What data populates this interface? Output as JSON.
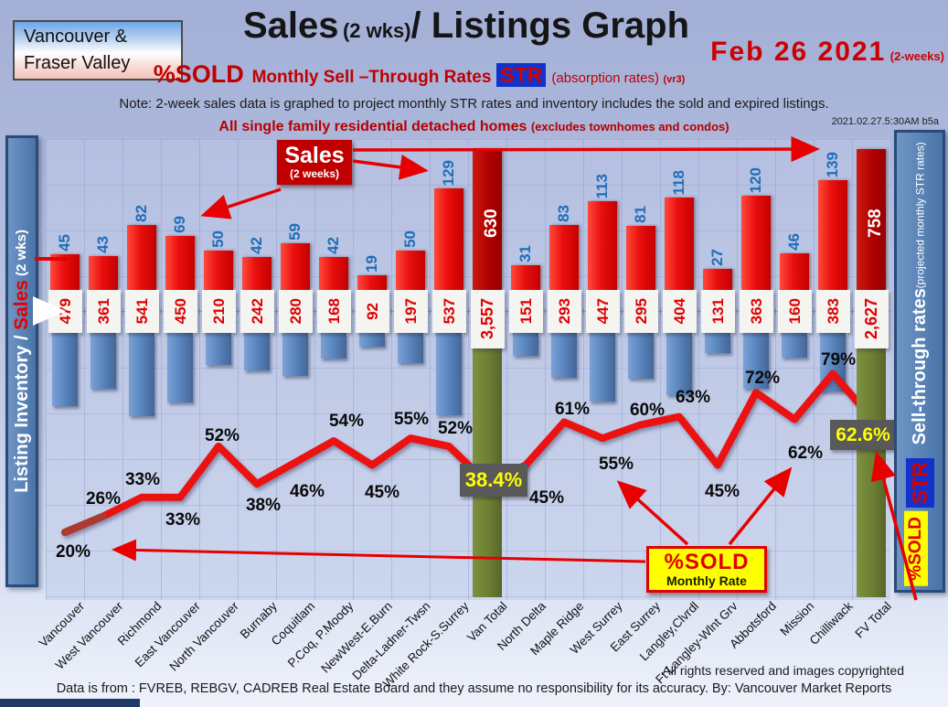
{
  "header": {
    "logo": {
      "line1": "Vancouver &",
      "line2": "Fraser Valley"
    },
    "title": {
      "main": "Sales",
      "wks": "(2 wks)",
      "rest": "/ Listings Graph"
    },
    "date": {
      "text": "Feb  26  2021",
      "suffix": "(2-weeks)"
    },
    "subtitle": {
      "pct": "%SOLD",
      "rates": "Monthly Sell –Through Rates",
      "str": "STR",
      "absorption": "(absorption rates)",
      "version": "(vr3)"
    },
    "note": "Note: 2-week sales data is graphed to project monthly STR rates and inventory includes the sold and expired listings.",
    "scope": "All single family residential detached homes",
    "scope_paren": "(excludes townhomes and condos)",
    "timestamp": "2021.02.27.5:30AM b5a"
  },
  "left_axis": {
    "part1": "Listing Inventory / ",
    "part2": "Sales",
    "part3": " (2  wks)"
  },
  "right_axis": {
    "title": "Sell-through rates",
    "subtitle": "  (projected monthly STR rates)",
    "str_badge": "STR",
    "sold_badge": "%SOLD"
  },
  "annotations": {
    "sales_box": {
      "title": "Sales",
      "sub": "(2 weeks)"
    },
    "sold_box": {
      "title": "%SOLD",
      "sub": "Monthly Rate"
    }
  },
  "footer": {
    "rights": "All rights reserved and  images copyrighted",
    "source": "Data is from : FVREB, REBGV, CADREB Real Estate Board and they assume no responsibility for its accuracy. By: Vancouver Market Reports"
  },
  "colors": {
    "sales_bar": "#e10000",
    "totals_sales_bar": "#b00000",
    "inventory_bar": "#5b87c0",
    "totals_inventory_bar": "#6d7f32",
    "str_line": "#ec1212",
    "accent_red": "#cc0000",
    "total_pct_bg": "#595959",
    "total_pct_text": "#ffff00",
    "sidebar_blue": "#5b84b8",
    "str_badge_bg": "#1133cc",
    "annotation_yellow": "#ffff00"
  },
  "chart_data": {
    "type": "bar+line",
    "title": "Sales (2 wks) / Listings Graph — %SOLD Monthly Sell-Through Rates (STR) — Feb 26 2021",
    "categories": [
      "Vancouver",
      "West Vancouver",
      "Richmond",
      "East Vancouver",
      "North Vancouver",
      "Burnaby",
      "Coquitlam",
      "P.Coq, P.Moody",
      "NewWest-E.Burn",
      "Delta-Ladner-Twsn",
      "White Rock-S.Surrey",
      "Van Total",
      "North Delta",
      "Maple Ridge",
      "West Surrey",
      "East Surrey",
      "Langley,Clvrdl",
      "Ft Langley-Wlnt Grv",
      "Abbotsford",
      "Mission",
      "Chilliwack",
      "FV Total"
    ],
    "series": [
      {
        "name": "Sales (2 weeks)",
        "type": "bar",
        "values": [
          45,
          43,
          82,
          69,
          50,
          42,
          59,
          42,
          19,
          50,
          129,
          630,
          31,
          83,
          113,
          81,
          118,
          27,
          120,
          46,
          139,
          758
        ]
      },
      {
        "name": "Listing Inventory",
        "type": "bar",
        "values": [
          479,
          361,
          541,
          450,
          210,
          242,
          280,
          168,
          92,
          197,
          537,
          3557,
          151,
          293,
          447,
          295,
          404,
          131,
          363,
          160,
          383,
          2627
        ],
        "labels": [
          "479",
          "361",
          "541",
          "450",
          "210",
          "242",
          "280",
          "168",
          "92",
          "197",
          "537",
          "3,557",
          "151",
          "293",
          "447",
          "295",
          "404",
          "131",
          "363",
          "160",
          "383",
          "2,627"
        ]
      },
      {
        "name": "%SOLD Monthly Sell-Through Rate (STR)",
        "type": "line",
        "values": [
          20,
          26,
          33,
          33,
          52,
          38,
          46,
          54,
          45,
          55,
          52,
          38.4,
          45,
          61,
          55,
          60,
          63,
          45,
          72,
          62,
          79,
          62.6
        ],
        "labels": [
          "20%",
          "26%",
          "33%",
          "33%",
          "52%",
          "38%",
          "46%",
          "54%",
          "45%",
          "55%",
          "52%",
          "38.4%",
          "45%",
          "61%",
          "55%",
          "60%",
          "63%",
          "45%",
          "72%",
          "62%",
          "79%",
          "62.6%"
        ]
      }
    ],
    "totals_indices": [
      11,
      21
    ],
    "totals_note": "Van Total and FV Total sales bars are off-scale (clipped, dark red); their inventory is drawn as full-height green bars; their STR values are highlighted in grey boxes with yellow text",
    "legend_position": "none",
    "grid": true
  }
}
